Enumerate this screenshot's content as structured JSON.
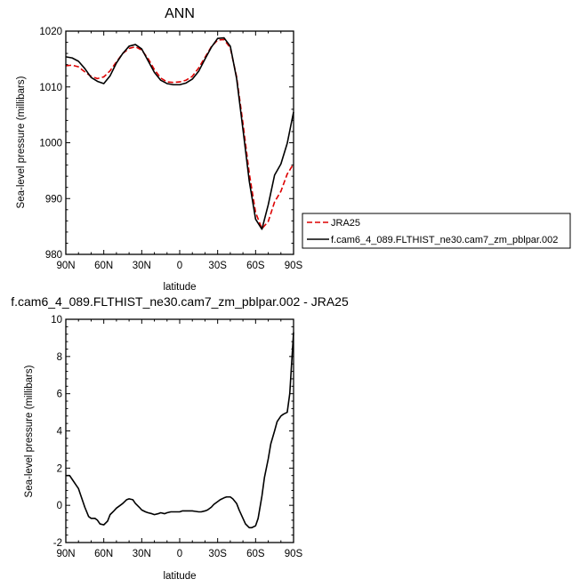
{
  "chart_data": [
    {
      "type": "line",
      "title": "ANN",
      "xlabel": "latitude",
      "ylabel": "Sea-level pressure (millibars)",
      "xlim": [
        90,
        -90
      ],
      "ylim": [
        980,
        1020
      ],
      "xticks": [
        90,
        60,
        30,
        0,
        -30,
        -60,
        -90
      ],
      "xtick_labels": [
        "90N",
        "60N",
        "30N",
        "0",
        "30S",
        "60S",
        "90S"
      ],
      "yticks": [
        980,
        990,
        1000,
        1010,
        1020
      ],
      "ytick_labels": [
        "980",
        "990",
        "1000",
        "1010",
        "1020"
      ],
      "grid": false,
      "legend_position": "right",
      "series": [
        {
          "name": "JRA25",
          "color": "#dd0000",
          "dash": "dashed",
          "x": [
            90,
            85,
            80,
            75,
            70,
            65,
            60,
            55,
            50,
            45,
            40,
            35,
            30,
            25,
            20,
            15,
            10,
            5,
            0,
            -5,
            -10,
            -15,
            -20,
            -25,
            -30,
            -35,
            -40,
            -45,
            -50,
            -55,
            -60,
            -65,
            -70,
            -75,
            -80,
            -85,
            -90
          ],
          "values": [
            1013.8,
            1013.9,
            1013.6,
            1012.7,
            1011.9,
            1011.5,
            1011.8,
            1012.9,
            1014.5,
            1016.0,
            1016.9,
            1017.2,
            1016.6,
            1015.1,
            1013.1,
            1011.6,
            1010.9,
            1010.8,
            1010.9,
            1011.2,
            1011.9,
            1013.4,
            1015.3,
            1017.2,
            1018.4,
            1018.5,
            1017.0,
            1011.8,
            1003.5,
            994.5,
            987.5,
            984.6,
            985.9,
            989.4,
            991.3,
            994.4,
            996.2
          ]
        },
        {
          "name": "f.cam6_4_089.FLTHIST_ne30.cam7_zm_pblpar.002",
          "color": "#000000",
          "dash": "solid",
          "x": [
            90,
            85,
            80,
            75,
            70,
            65,
            60,
            55,
            50,
            45,
            40,
            35,
            30,
            25,
            20,
            15,
            10,
            5,
            0,
            -5,
            -10,
            -15,
            -20,
            -25,
            -30,
            -35,
            -40,
            -45,
            -50,
            -55,
            -60,
            -65,
            -70,
            -75,
            -80,
            -85,
            -90
          ],
          "values": [
            1015.4,
            1015.2,
            1014.6,
            1013.3,
            1011.7,
            1011.0,
            1010.6,
            1012.0,
            1014.3,
            1016.0,
            1017.3,
            1017.6,
            1016.8,
            1014.7,
            1012.6,
            1011.2,
            1010.6,
            1010.4,
            1010.4,
            1010.7,
            1011.4,
            1012.8,
            1015.0,
            1017.1,
            1018.7,
            1018.8,
            1017.3,
            1011.5,
            1002.4,
            993.1,
            986.3,
            984.5,
            988.9,
            994.2,
            996.2,
            999.9,
            1005.5
          ]
        }
      ]
    },
    {
      "type": "line",
      "title": "f.cam6_4_089.FLTHIST_ne30.cam7_zm_pblpar.002 - JRA25",
      "xlabel": "latitude",
      "ylabel": "Sea-level pressure (millibars)",
      "xlim": [
        90,
        -90
      ],
      "ylim": [
        -2,
        10
      ],
      "xticks": [
        90,
        60,
        30,
        0,
        -30,
        -60,
        -90
      ],
      "xtick_labels": [
        "90N",
        "60N",
        "30N",
        "0",
        "30S",
        "60S",
        "90S"
      ],
      "yticks": [
        -2,
        0,
        2,
        4,
        6,
        8,
        10
      ],
      "ytick_labels": [
        "-2",
        "0",
        "2",
        "4",
        "6",
        "8",
        "10"
      ],
      "grid": false,
      "series": [
        {
          "color": "#000000",
          "dash": "solid",
          "x": [
            90,
            87,
            85,
            82,
            80,
            78,
            75,
            72,
            70,
            67,
            65,
            63,
            60,
            57,
            55,
            52,
            50,
            47,
            45,
            42,
            40,
            37,
            35,
            32,
            30,
            27,
            25,
            22,
            20,
            17,
            15,
            12,
            10,
            7,
            5,
            2,
            0,
            -2,
            -5,
            -8,
            -10,
            -12,
            -15,
            -17,
            -20,
            -22,
            -25,
            -27,
            -30,
            -32,
            -35,
            -37,
            -40,
            -42,
            -45,
            -47,
            -50,
            -52,
            -55,
            -57,
            -60,
            -62,
            -65,
            -67,
            -70,
            -72,
            -75,
            -77,
            -80,
            -82,
            -85,
            -87,
            -90
          ],
          "values": [
            1.6,
            1.6,
            1.4,
            1.1,
            0.9,
            0.5,
            -0.1,
            -0.6,
            -0.7,
            -0.7,
            -0.8,
            -1.0,
            -1.05,
            -0.85,
            -0.5,
            -0.3,
            -0.15,
            0.0,
            0.1,
            0.3,
            0.35,
            0.3,
            0.1,
            -0.1,
            -0.25,
            -0.35,
            -0.4,
            -0.45,
            -0.5,
            -0.45,
            -0.4,
            -0.45,
            -0.4,
            -0.35,
            -0.35,
            -0.35,
            -0.35,
            -0.3,
            -0.3,
            -0.3,
            -0.3,
            -0.32,
            -0.35,
            -0.35,
            -0.3,
            -0.25,
            -0.1,
            0.05,
            0.2,
            0.3,
            0.4,
            0.45,
            0.45,
            0.35,
            0.1,
            -0.25,
            -0.7,
            -1.0,
            -1.2,
            -1.2,
            -1.1,
            -0.7,
            0.5,
            1.5,
            2.5,
            3.3,
            4.0,
            4.5,
            4.8,
            4.9,
            5.0,
            6.0,
            9.3
          ]
        }
      ]
    }
  ]
}
